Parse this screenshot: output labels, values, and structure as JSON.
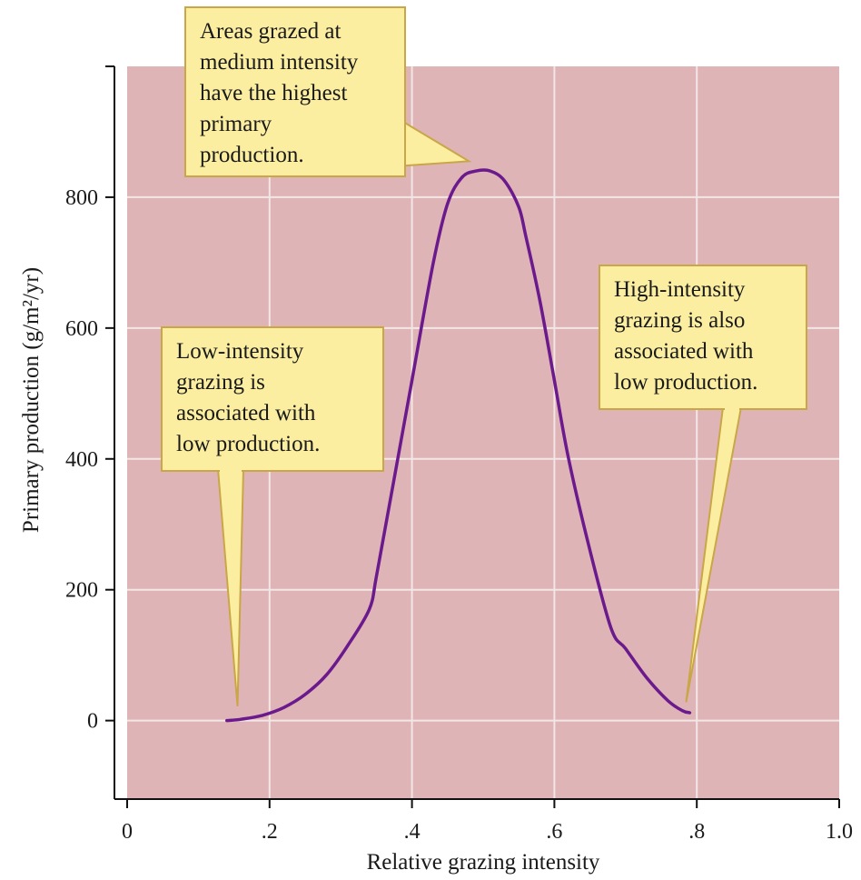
{
  "chart_data": {
    "type": "line",
    "title": "",
    "xlabel": "Relative grazing intensity",
    "ylabel": "Primary production (g/m²/yr)",
    "xlim": [
      0,
      1.0
    ],
    "ylim": [
      -120,
      1000
    ],
    "x_ticks": [
      {
        "value": 0,
        "label": "0"
      },
      {
        "value": 0.2,
        "label": ".2"
      },
      {
        "value": 0.4,
        "label": ".4"
      },
      {
        "value": 0.6,
        "label": ".6"
      },
      {
        "value": 0.8,
        "label": ".8"
      },
      {
        "value": 1.0,
        "label": "1.0"
      }
    ],
    "y_ticks": [
      {
        "value": 0,
        "label": "0"
      },
      {
        "value": 200,
        "label": "200"
      },
      {
        "value": 400,
        "label": "400"
      },
      {
        "value": 600,
        "label": "600"
      },
      {
        "value": 800,
        "label": "800"
      }
    ],
    "grid": true,
    "series": [
      {
        "color": "#6a1a8c",
        "x": [
          0.14,
          0.16,
          0.19,
          0.22,
          0.25,
          0.28,
          0.31,
          0.34,
          0.35,
          0.37,
          0.4,
          0.43,
          0.45,
          0.47,
          0.49,
          0.51,
          0.53,
          0.55,
          0.56,
          0.58,
          0.6,
          0.62,
          0.65,
          0.68,
          0.7,
          0.73,
          0.76,
          0.78,
          0.79
        ],
        "y": [
          0,
          2,
          8,
          20,
          40,
          70,
          115,
          170,
          220,
          340,
          520,
          700,
          790,
          830,
          840,
          840,
          825,
          785,
          740,
          640,
          520,
          400,
          260,
          140,
          110,
          65,
          30,
          15,
          12
        ]
      }
    ],
    "annotations": [
      {
        "id": "peak",
        "lines": [
          "Areas grazed at",
          "medium intensity",
          "have the highest",
          "primary",
          "production."
        ],
        "target": {
          "x": 0.48,
          "y": 855
        }
      },
      {
        "id": "low",
        "lines": [
          "Low-intensity",
          "grazing is",
          "associated with",
          "low production."
        ],
        "target": {
          "x": 0.155,
          "y": 22
        }
      },
      {
        "id": "high",
        "lines": [
          "High-intensity",
          "grazing is also",
          "associated with",
          "low production."
        ],
        "target": {
          "x": 0.785,
          "y": 28
        }
      }
    ],
    "colors": {
      "plot_background": "#dfb4b6",
      "grid": "#f2e6e6",
      "note_fill": "#fbeea0",
      "note_stroke": "#c9a647"
    }
  }
}
